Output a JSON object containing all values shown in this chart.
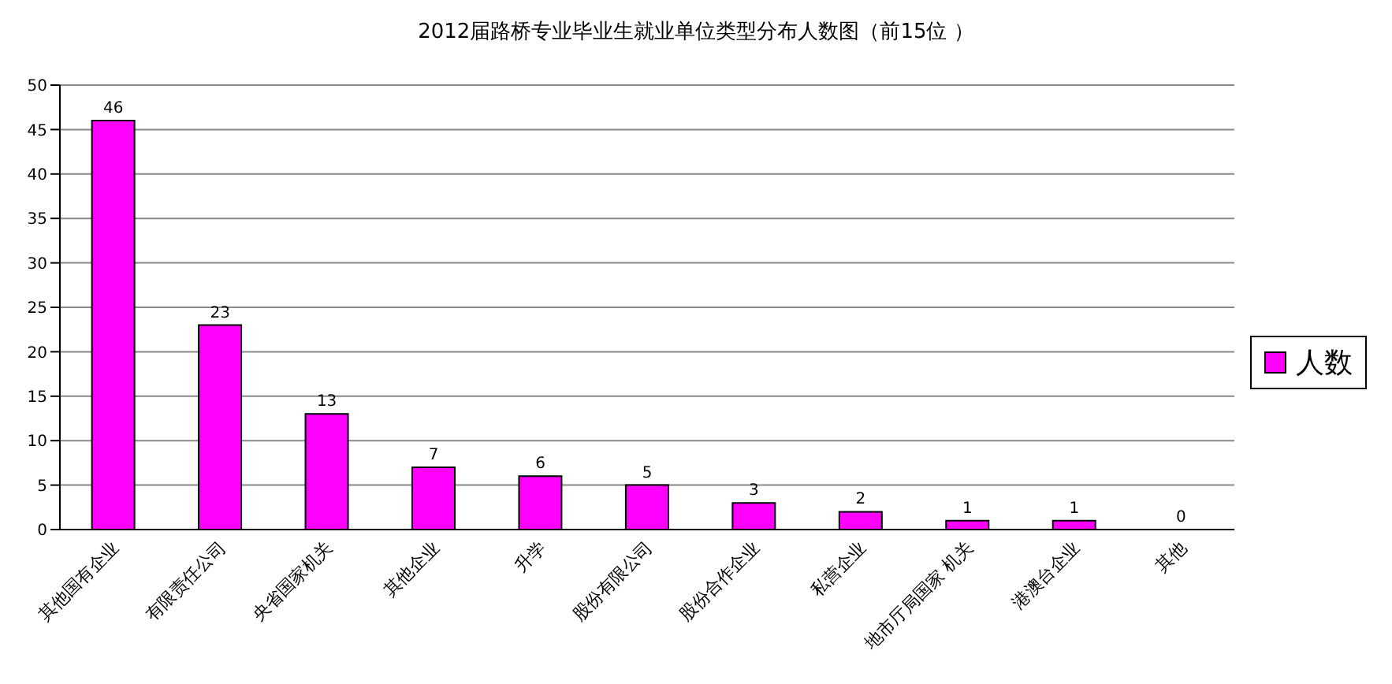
{
  "chart_data": {
    "type": "bar",
    "title": "2012届路桥专业毕业生就业单位类型分布人数图（前15位 ）",
    "categories": [
      "其他国有企业",
      "有限责任公司",
      "央省国家机关",
      "其他企业",
      "升学",
      "股份有限公司",
      "股份合作企业",
      "私营企业",
      "地市厅局国家 机关",
      "港澳台企业",
      "其他"
    ],
    "series": [
      {
        "name": "人数",
        "color": "#ff00ff",
        "values": [
          46,
          23,
          13,
          7,
          6,
          5,
          3,
          2,
          1,
          1,
          0
        ]
      }
    ],
    "ylim": [
      0,
      50
    ],
    "yticks": [
      0,
      5,
      10,
      15,
      20,
      25,
      30,
      35,
      40,
      45,
      50
    ],
    "grid": "y",
    "legend": "right",
    "data_labels": true
  }
}
